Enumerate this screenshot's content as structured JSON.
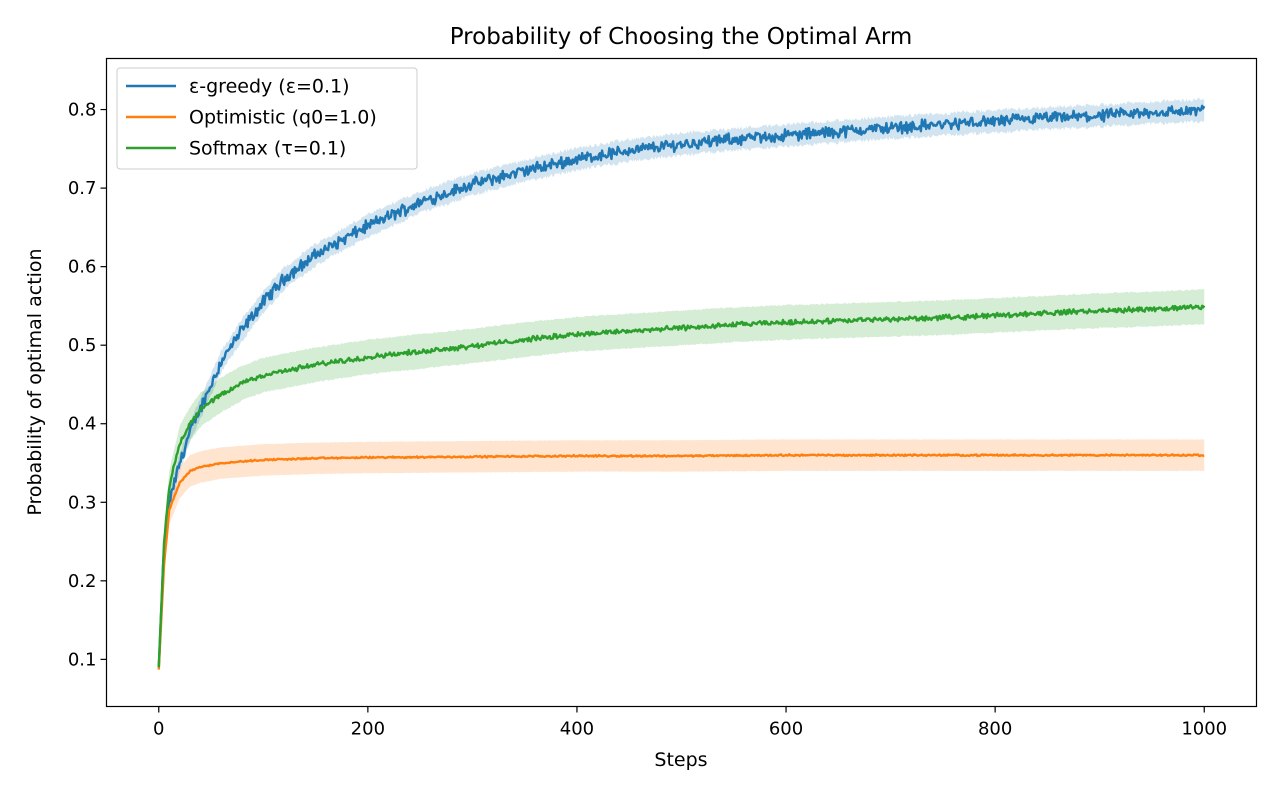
{
  "chart_data": {
    "type": "line",
    "title": "Probability of Choosing the Optimal Arm",
    "xlabel": "Steps",
    "ylabel": "Probability of optimal action",
    "xlim": [
      -50,
      1050
    ],
    "ylim": [
      0.04,
      0.865
    ],
    "xticks": [
      0,
      200,
      400,
      600,
      800,
      1000
    ],
    "yticks": [
      0.1,
      0.2,
      0.3,
      0.4,
      0.5,
      0.6,
      0.7,
      0.8
    ],
    "grid": false,
    "legend": "top-left",
    "band": "shaded band around each series",
    "series": [
      {
        "name": "ε-greedy (ε=0.1)",
        "color": "#1f77b4",
        "x": [
          0,
          5,
          10,
          20,
          30,
          40,
          50,
          60,
          80,
          100,
          120,
          150,
          200,
          250,
          300,
          350,
          400,
          450,
          500,
          550,
          600,
          650,
          700,
          750,
          800,
          850,
          900,
          950,
          1000
        ],
        "values": [
          0.09,
          0.24,
          0.3,
          0.35,
          0.39,
          0.42,
          0.45,
          0.48,
          0.52,
          0.555,
          0.585,
          0.615,
          0.652,
          0.682,
          0.705,
          0.722,
          0.737,
          0.748,
          0.756,
          0.762,
          0.767,
          0.772,
          0.777,
          0.781,
          0.785,
          0.789,
          0.792,
          0.796,
          0.799
        ],
        "band_halfwidth": [
          0.005,
          0.01,
          0.012,
          0.012,
          0.013,
          0.013,
          0.013,
          0.013,
          0.014,
          0.014,
          0.014,
          0.014,
          0.014,
          0.014,
          0.014,
          0.014,
          0.014,
          0.014,
          0.014,
          0.014,
          0.014,
          0.014,
          0.014,
          0.014,
          0.014,
          0.014,
          0.014,
          0.014,
          0.014
        ],
        "noise": 0.006
      },
      {
        "name": "Optimistic (q0=1.0)",
        "color": "#ff7f0e",
        "x": [
          0,
          5,
          10,
          20,
          30,
          40,
          60,
          80,
          100,
          150,
          200,
          300,
          400,
          500,
          600,
          700,
          800,
          900,
          1000
        ],
        "values": [
          0.087,
          0.22,
          0.29,
          0.325,
          0.34,
          0.345,
          0.35,
          0.352,
          0.354,
          0.356,
          0.357,
          0.358,
          0.359,
          0.359,
          0.36,
          0.36,
          0.36,
          0.36,
          0.36
        ],
        "band_halfwidth": [
          0.005,
          0.015,
          0.018,
          0.02,
          0.02,
          0.02,
          0.02,
          0.02,
          0.02,
          0.02,
          0.02,
          0.02,
          0.02,
          0.02,
          0.02,
          0.02,
          0.02,
          0.02,
          0.02
        ],
        "noise": 0.0008
      },
      {
        "name": "Softmax (τ=0.1)",
        "color": "#2ca02c",
        "x": [
          0,
          5,
          10,
          20,
          30,
          40,
          60,
          80,
          100,
          150,
          200,
          250,
          300,
          350,
          400,
          450,
          500,
          550,
          600,
          650,
          700,
          750,
          800,
          850,
          900,
          950,
          1000
        ],
        "values": [
          0.09,
          0.25,
          0.32,
          0.375,
          0.4,
          0.418,
          0.437,
          0.452,
          0.462,
          0.475,
          0.485,
          0.492,
          0.499,
          0.507,
          0.514,
          0.518,
          0.522,
          0.526,
          0.529,
          0.531,
          0.533,
          0.535,
          0.538,
          0.541,
          0.544,
          0.546,
          0.549
        ],
        "band_halfwidth": [
          0.005,
          0.015,
          0.02,
          0.022,
          0.022,
          0.022,
          0.022,
          0.022,
          0.022,
          0.022,
          0.022,
          0.022,
          0.022,
          0.022,
          0.022,
          0.022,
          0.022,
          0.022,
          0.022,
          0.022,
          0.022,
          0.022,
          0.022,
          0.022,
          0.022,
          0.022,
          0.022
        ],
        "noise": 0.0025
      }
    ]
  }
}
